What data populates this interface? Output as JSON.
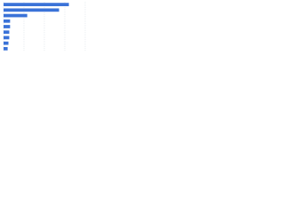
{
  "chart_data": {
    "type": "bar",
    "orientation": "horizontal",
    "categories": [
      null,
      null,
      null,
      null,
      null,
      null,
      null,
      null,
      null
    ],
    "values": [
      80,
      68,
      29,
      8,
      8,
      7,
      7,
      6,
      5
    ],
    "color": "#3a72d8",
    "xlim": [
      0,
      100
    ],
    "xticks": [
      0,
      25,
      50,
      75,
      100
    ],
    "grid": true
  }
}
